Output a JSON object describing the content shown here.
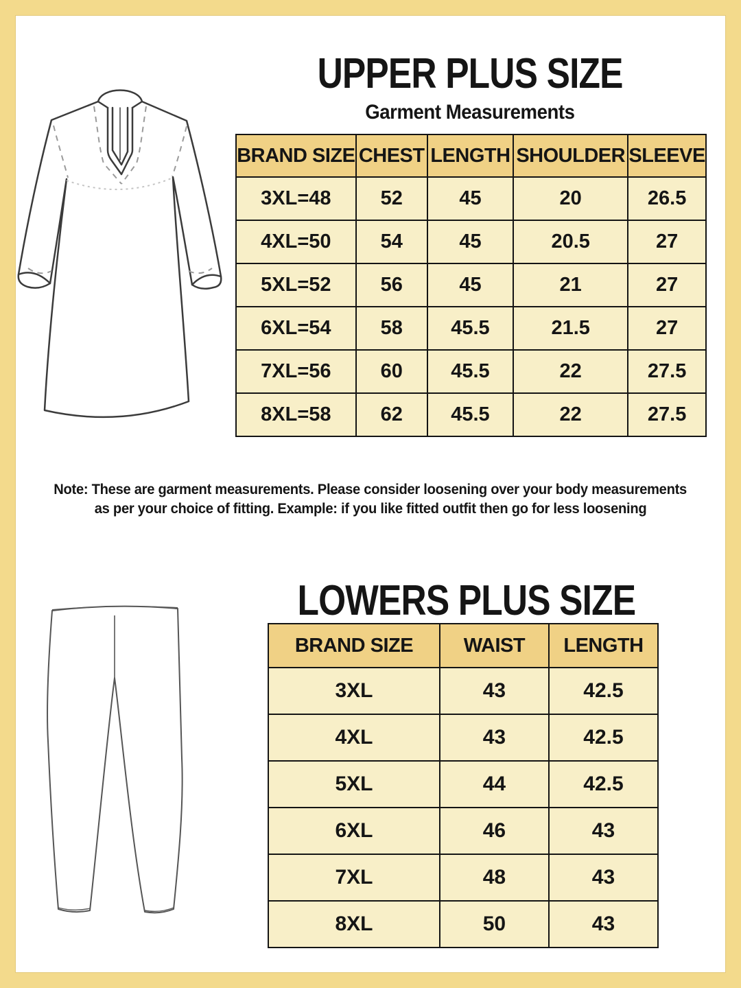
{
  "colors": {
    "frame": "#F3DA8C",
    "table_header_bg": "#F0D185",
    "table_cell_bg": "#F8EFC8",
    "table_border": "#141414",
    "text": "#151515",
    "page_bg": "#FFFFFF"
  },
  "icons": {
    "kurta": "kurta-line-drawing-icon",
    "leggings": "leggings-line-drawing-icon"
  },
  "upper": {
    "title": "UPPER PLUS SIZE",
    "subtitle": "Garment Measurements",
    "table": {
      "headers": [
        "BRAND SIZE",
        "CHEST",
        "LENGTH",
        "SHOULDER",
        "SLEEVE"
      ],
      "rows": [
        [
          "3XL=48",
          "52",
          "45",
          "20",
          "26.5"
        ],
        [
          "4XL=50",
          "54",
          "45",
          "20.5",
          "27"
        ],
        [
          "5XL=52",
          "56",
          "45",
          "21",
          "27"
        ],
        [
          "6XL=54",
          "58",
          "45.5",
          "21.5",
          "27"
        ],
        [
          "7XL=56",
          "60",
          "45.5",
          "22",
          "27.5"
        ],
        [
          "8XL=58",
          "62",
          "45.5",
          "22",
          "27.5"
        ]
      ]
    },
    "note_line1": "Note: These are garment measurements. Please consider loosening over your body measurements",
    "note_line2": "as per your choice of fitting. Example: if you like fitted outfit then go for less loosening"
  },
  "lower": {
    "title": "LOWERS PLUS SIZE",
    "table": {
      "headers": [
        "BRAND SIZE",
        "WAIST",
        "LENGTH"
      ],
      "rows": [
        [
          "3XL",
          "43",
          "42.5"
        ],
        [
          "4XL",
          "43",
          "42.5"
        ],
        [
          "5XL",
          "44",
          "42.5"
        ],
        [
          "6XL",
          "46",
          "43"
        ],
        [
          "7XL",
          "48",
          "43"
        ],
        [
          "8XL",
          "50",
          "43"
        ]
      ]
    }
  }
}
